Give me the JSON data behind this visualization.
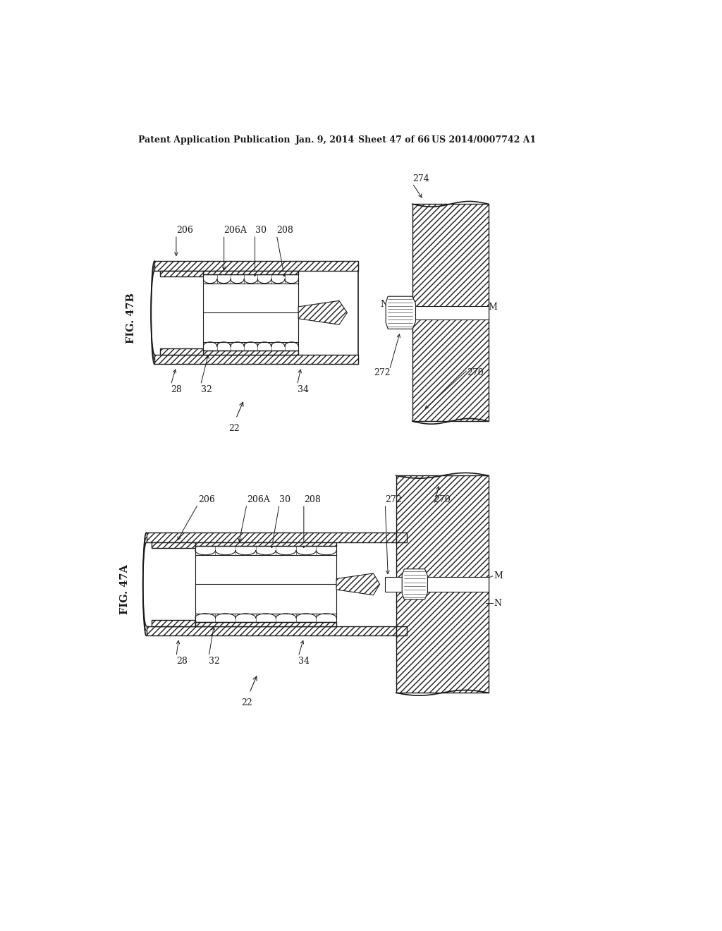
{
  "bg_color": "#ffffff",
  "line_color": "#1a1a1a",
  "header_text": "Patent Application Publication",
  "header_date": "Jan. 9, 2014",
  "header_sheet": "Sheet 47 of 66",
  "header_patent": "US 2014/0007742 A1",
  "fig47b_label": "FIG. 47B",
  "fig47a_label": "FIG. 47A"
}
